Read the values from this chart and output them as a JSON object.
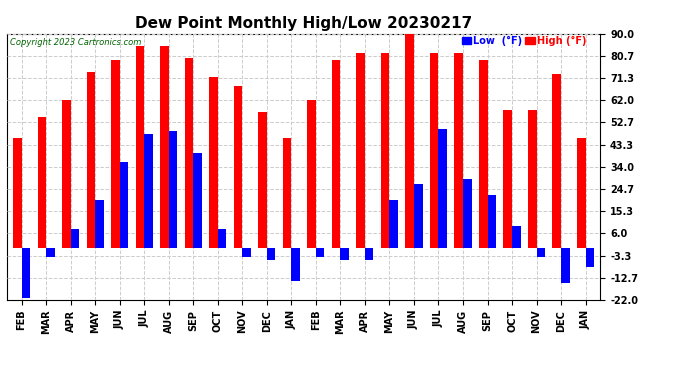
{
  "title": "Dew Point Monthly High/Low 20230217",
  "copyright": "Copyright 2023 Cartronics.com",
  "categories": [
    "FEB",
    "MAR",
    "APR",
    "MAY",
    "JUN",
    "JUL",
    "AUG",
    "SEP",
    "OCT",
    "NOV",
    "DEC",
    "JAN",
    "FEB",
    "MAR",
    "APR",
    "MAY",
    "JUN",
    "JUL",
    "AUG",
    "SEP",
    "OCT",
    "NOV",
    "DEC",
    "JAN"
  ],
  "high_values": [
    46,
    55,
    62,
    74,
    79,
    85,
    85,
    80,
    72,
    68,
    57,
    46,
    62,
    79,
    82,
    82,
    91,
    82,
    82,
    79,
    58,
    58,
    73,
    46
  ],
  "low_values": [
    -21,
    -4,
    8,
    20,
    36,
    48,
    49,
    40,
    8,
    -4,
    -5,
    -14,
    -4,
    -5,
    -5,
    20,
    27,
    50,
    29,
    22,
    9,
    -4,
    -15,
    -8
  ],
  "yticks": [
    90.0,
    80.7,
    71.3,
    62.0,
    52.7,
    43.3,
    34.0,
    24.7,
    15.3,
    6.0,
    -3.3,
    -12.7,
    -22.0
  ],
  "ylim": [
    -22.0,
    90.0
  ],
  "bar_width": 0.35,
  "high_color": "#ff0000",
  "low_color": "#0000ff",
  "bg_color": "#ffffff",
  "grid_color": "#aaaaaa",
  "title_fontsize": 11,
  "tick_fontsize": 7,
  "label_fontsize": 7
}
